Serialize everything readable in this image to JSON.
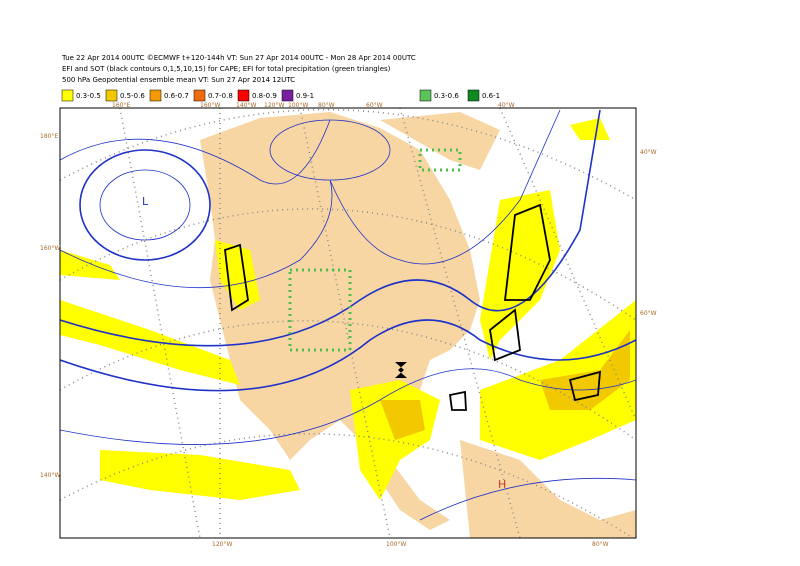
{
  "header": {
    "lines": [
      "Tue 22 Apr 2014 00UTC ©ECMWF t+120-144h VT: Sun 27 Apr 2014 00UTC - Mon 28 Apr 2014 00UTC",
      "EFI and SOT (black contours 0,1,5,10,15) for CAPE; EFI for total precipitation (green triangles)",
      "500 hPa Geopotential ensemble mean VT: Sun 27 Apr 2014 12UTC"
    ]
  },
  "legend": {
    "items": [
      {
        "label": "0.3-0.5",
        "color": "#ffff00"
      },
      {
        "label": "0.5-0.6",
        "color": "#f2c800"
      },
      {
        "label": "0.6-0.7",
        "color": "#f29a00"
      },
      {
        "label": "0.7-0.8",
        "color": "#f06a10"
      },
      {
        "label": "0.8-0.9",
        "color": "#ff0000"
      },
      {
        "label": "0.9-1",
        "color": "#7a1fa0"
      },
      {
        "label": "0.3-0.6",
        "color": "#5cc35c"
      },
      {
        "label": "0.6-1",
        "color": "#108a20"
      }
    ]
  },
  "map": {
    "labels": [
      "160°E",
      "160°W",
      "140°W",
      "120°W",
      "100°W",
      "80°W",
      "60°W",
      "40°W",
      "180°E",
      "160°W",
      "140°W",
      "120°W",
      "100°W",
      "80°W",
      "40°W",
      "60°W"
    ],
    "pressure_centers": [
      "L",
      "H"
    ]
  }
}
